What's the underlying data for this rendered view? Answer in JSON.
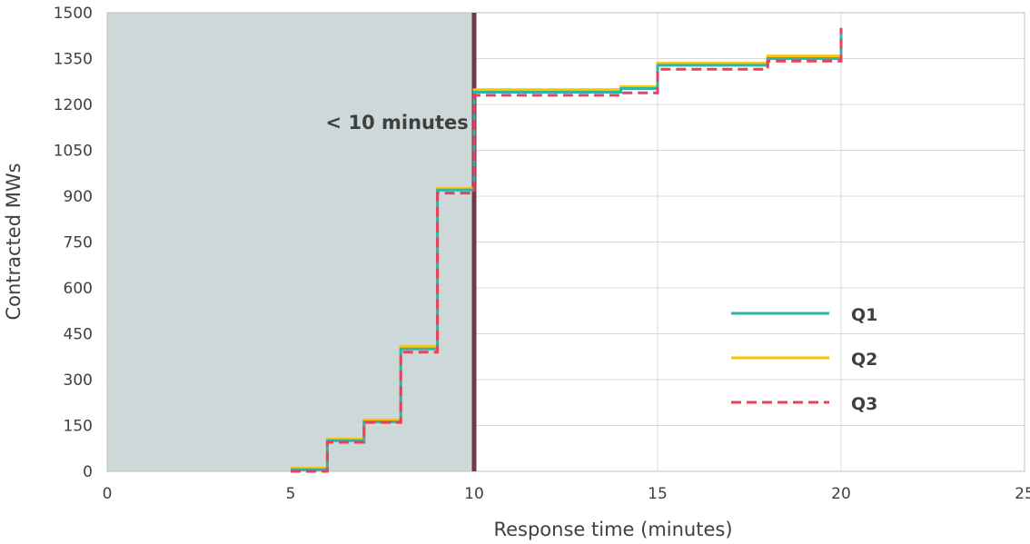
{
  "chart_data": {
    "type": "line",
    "step": true,
    "xlabel": "Response time (minutes)",
    "ylabel": "Contracted MWs",
    "xlim": [
      0,
      25
    ],
    "ylim": [
      0,
      1500
    ],
    "xticks": [
      "0",
      "5",
      "10",
      "15",
      "20",
      "25"
    ],
    "yticks": [
      "0",
      "150",
      "300",
      "450",
      "600",
      "750",
      "900",
      "1050",
      "1200",
      "1350",
      "1500"
    ],
    "grid": true,
    "legend_position": "right",
    "shaded_region": {
      "x_from": 0,
      "x_to": 10,
      "color": "#cdd8d8"
    },
    "vertical_marker": {
      "x": 10,
      "color": "#6e3a48"
    },
    "annotation": {
      "text": "< 10 minutes",
      "x": 7.9,
      "y": 1120
    },
    "series": [
      {
        "name": "Q1",
        "color": "#2eb5a8",
        "style": "solid",
        "x": [
          5,
          6,
          6,
          7,
          7,
          8,
          8,
          9,
          9,
          10,
          10,
          14,
          14,
          15,
          15,
          18,
          18,
          20,
          20
        ],
        "y": [
          5,
          5,
          100,
          100,
          162,
          162,
          400,
          400,
          920,
          920,
          1240,
          1240,
          1252,
          1252,
          1328,
          1328,
          1350,
          1350,
          1440
        ]
      },
      {
        "name": "Q2",
        "color": "#ffc000",
        "style": "solid",
        "x": [
          5,
          6,
          6,
          7,
          7,
          8,
          8,
          9,
          9,
          10,
          10,
          14,
          14,
          15,
          15,
          18,
          18,
          20,
          20
        ],
        "y": [
          10,
          10,
          105,
          105,
          168,
          168,
          408,
          408,
          925,
          925,
          1248,
          1248,
          1258,
          1258,
          1335,
          1335,
          1358,
          1358,
          1445
        ]
      },
      {
        "name": "Q3",
        "color": "#e8405e",
        "style": "dashed",
        "x": [
          5,
          6,
          6,
          7,
          7,
          8,
          8,
          9,
          9,
          10,
          10,
          14,
          14,
          15,
          15,
          18,
          18,
          20,
          20
        ],
        "y": [
          0,
          0,
          95,
          95,
          160,
          160,
          390,
          390,
          910,
          910,
          1230,
          1230,
          1238,
          1238,
          1315,
          1315,
          1342,
          1342,
          1450
        ]
      }
    ]
  }
}
